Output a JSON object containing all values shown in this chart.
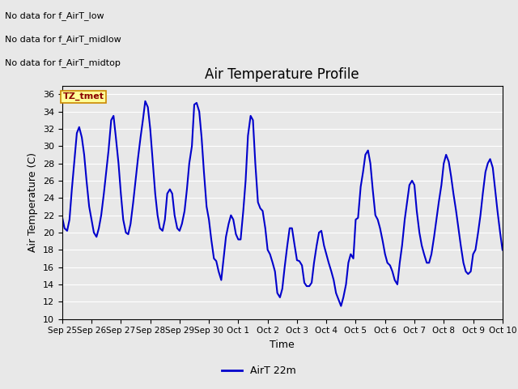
{
  "title": "Air Temperature Profile",
  "xlabel": "Time",
  "ylabel": "Air Temperature (C)",
  "ylim": [
    10,
    37
  ],
  "yticks": [
    10,
    12,
    14,
    16,
    18,
    20,
    22,
    24,
    26,
    28,
    30,
    32,
    34,
    36
  ],
  "line_color": "#0000cc",
  "line_width": 1.5,
  "legend_label": "AirT 22m",
  "legend_line_color": "#0000cc",
  "background_color": "#e8e8e8",
  "annotations": [
    "No data for f_AirT_low",
    "No data for f_AirT_midlow",
    "No data for f_AirT_midtop"
  ],
  "tz_label": "TZ_tmet",
  "x_tick_labels": [
    "Sep 25",
    "Sep 26",
    "Sep 27",
    "Sep 28",
    "Sep 29",
    "Sep 30",
    "Oct 1",
    "Oct 2",
    "Oct 3",
    "Oct 4",
    "Oct 5",
    "Oct 6",
    "Oct 7",
    "Oct 8",
    "Oct 9",
    "Oct 10"
  ],
  "x_tick_positions": [
    0,
    1,
    2,
    3,
    4,
    5,
    6,
    7,
    8,
    9,
    10,
    11,
    12,
    13,
    14,
    15
  ],
  "temp_data_x": [
    0.0,
    0.08,
    0.17,
    0.25,
    0.33,
    0.42,
    0.5,
    0.58,
    0.67,
    0.75,
    0.83,
    0.92,
    1.0,
    1.08,
    1.17,
    1.25,
    1.33,
    1.42,
    1.5,
    1.58,
    1.67,
    1.75,
    1.83,
    1.92,
    2.0,
    2.08,
    2.17,
    2.25,
    2.33,
    2.42,
    2.5,
    2.58,
    2.67,
    2.75,
    2.83,
    2.92,
    3.0,
    3.08,
    3.17,
    3.25,
    3.33,
    3.42,
    3.5,
    3.58,
    3.67,
    3.75,
    3.83,
    3.92,
    4.0,
    4.08,
    4.17,
    4.25,
    4.33,
    4.42,
    4.5,
    4.58,
    4.67,
    4.75,
    4.83,
    4.92,
    5.0,
    5.08,
    5.17,
    5.25,
    5.33,
    5.42,
    5.5,
    5.58,
    5.67,
    5.75,
    5.83,
    5.92,
    6.0,
    6.08,
    6.17,
    6.25,
    6.33,
    6.42,
    6.5,
    6.58,
    6.67,
    6.75,
    6.83,
    6.92,
    7.0,
    7.08,
    7.17,
    7.25,
    7.33,
    7.42,
    7.5,
    7.58,
    7.67,
    7.75,
    7.83,
    7.92,
    8.0,
    8.08,
    8.17,
    8.25,
    8.33,
    8.42,
    8.5,
    8.58,
    8.67,
    8.75,
    8.83,
    8.92,
    9.0,
    9.08,
    9.17,
    9.25,
    9.33,
    9.42,
    9.5,
    9.58,
    9.67,
    9.75,
    9.83,
    9.92,
    10.0,
    10.08,
    10.17,
    10.25,
    10.33,
    10.42,
    10.5,
    10.58,
    10.67,
    10.75,
    10.83,
    10.92,
    11.0,
    11.08,
    11.17,
    11.25,
    11.33,
    11.42,
    11.5,
    11.58,
    11.67,
    11.75,
    11.83,
    11.92,
    12.0,
    12.08,
    12.17,
    12.25,
    12.33,
    12.42,
    12.5,
    12.58,
    12.67,
    12.75,
    12.83,
    12.92,
    13.0,
    13.08,
    13.17,
    13.25,
    13.33,
    13.42,
    13.5,
    13.58,
    13.67,
    13.75,
    13.83,
    13.92,
    14.0,
    14.08,
    14.17,
    14.25,
    14.33,
    14.42,
    14.5,
    14.58,
    14.67,
    14.75,
    14.83,
    14.92,
    15.0
  ],
  "temp_data_y": [
    21.8,
    20.5,
    20.2,
    21.5,
    25.0,
    28.5,
    31.5,
    32.2,
    31.0,
    29.0,
    26.0,
    23.0,
    21.5,
    20.0,
    19.5,
    20.5,
    22.0,
    24.5,
    27.0,
    29.5,
    33.0,
    33.5,
    31.0,
    28.0,
    24.5,
    21.5,
    20.0,
    19.8,
    21.0,
    23.5,
    26.0,
    28.5,
    31.0,
    33.0,
    35.2,
    34.5,
    32.0,
    28.5,
    24.5,
    22.0,
    20.5,
    20.2,
    21.5,
    24.5,
    25.0,
    24.5,
    22.0,
    20.5,
    20.2,
    21.0,
    22.5,
    25.0,
    28.0,
    30.0,
    34.8,
    35.0,
    34.0,
    31.0,
    27.0,
    23.0,
    21.5,
    19.2,
    17.0,
    16.7,
    15.5,
    14.5,
    17.0,
    19.5,
    21.0,
    22.0,
    21.5,
    19.8,
    19.2,
    19.2,
    22.5,
    26.0,
    31.2,
    33.5,
    33.0,
    28.0,
    23.5,
    22.8,
    22.5,
    20.5,
    18.0,
    17.5,
    16.5,
    15.5,
    13.0,
    12.5,
    13.5,
    16.0,
    18.5,
    20.5,
    20.5,
    18.5,
    16.8,
    16.7,
    16.2,
    14.2,
    13.8,
    13.8,
    14.2,
    16.5,
    18.5,
    20.0,
    20.2,
    18.5,
    17.5,
    16.5,
    15.5,
    14.5,
    13.0,
    12.2,
    11.5,
    12.5,
    14.0,
    16.5,
    17.5,
    17.0,
    21.5,
    21.7,
    25.3,
    27.0,
    29.0,
    29.5,
    28.0,
    25.0,
    22.0,
    21.5,
    20.5,
    19.0,
    17.5,
    16.5,
    16.2,
    15.5,
    14.5,
    14.0,
    16.5,
    18.5,
    21.5,
    23.5,
    25.5,
    26.0,
    25.5,
    22.5,
    20.0,
    18.5,
    17.5,
    16.5,
    16.5,
    17.5,
    19.5,
    21.5,
    23.5,
    25.5,
    28.0,
    29.0,
    28.2,
    26.5,
    24.5,
    22.5,
    20.5,
    18.5,
    16.5,
    15.5,
    15.2,
    15.5,
    17.5,
    18.0,
    20.0,
    22.0,
    24.5,
    27.0,
    28.0,
    28.5,
    27.5,
    25.0,
    22.5,
    20.0,
    18.0
  ]
}
